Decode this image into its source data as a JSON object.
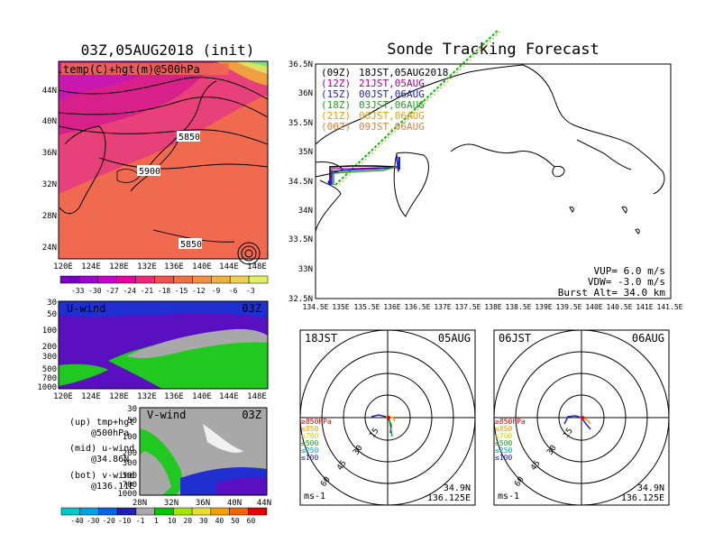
{
  "colors": {
    "temp_scale": [
      "#7a00c8",
      "#a000d0",
      "#c800c8",
      "#e600a0",
      "#f0287a",
      "#f05050",
      "#f07040",
      "#f09040",
      "#f0b040",
      "#f0d050",
      "#e0f060"
    ],
    "u_neg": "#5a10c0",
    "u_neg2": "#2030d0",
    "u_pos": "#20c820",
    "u_gray": "#a8a8a8",
    "v_scale": [
      "#00c8c8",
      "#00a0e6",
      "#0064e6",
      "#2020b4",
      "#a8a8a8",
      "#00c800",
      "#a0e600",
      "#e6dc32",
      "#f0a000",
      "#f06400",
      "#e60000"
    ],
    "track_colors": [
      "#000000",
      "#a000a0",
      "#2020d0",
      "#20a020",
      "#e6a000",
      "#e08040"
    ]
  },
  "left": {
    "top_panel": {
      "title": "03Z,05AUG2018 (init)",
      "label": "temp(C)+hgt(m)@500hPa",
      "contours": [
        "5850",
        "5900",
        "5850"
      ],
      "yticks": [
        "44N",
        "40N",
        "36N",
        "32N",
        "28N",
        "24N"
      ],
      "xticks": [
        "120E",
        "124E",
        "128E",
        "132E",
        "136E",
        "140E",
        "144E",
        "148E"
      ],
      "scale": [
        "-33",
        "-30",
        "-27",
        "-24",
        "-21",
        "-18",
        "-15",
        "-12",
        "-9",
        "-6",
        "-3"
      ]
    },
    "u_panel": {
      "label": "U-wind",
      "time": "03Z",
      "yticks": [
        "30",
        "50",
        "100",
        "200",
        "300",
        "500",
        "700",
        "1000"
      ],
      "xticks": [
        "120E",
        "124E",
        "128E",
        "132E",
        "136E",
        "140E",
        "144E",
        "148E"
      ]
    },
    "v_panel": {
      "label": "V-wind",
      "time": "03Z",
      "yticks": [
        "30",
        "50",
        "100",
        "200",
        "300",
        "500",
        "700",
        "1000"
      ],
      "xticks": [
        "28N",
        "32N",
        "36N",
        "40N",
        "44N"
      ]
    },
    "legend": {
      "l1": "(up) tmp+hgt",
      "l2": "@500hPa",
      "l3": "(mid) u-wind",
      "l4": "@34.86N",
      "l5": "(bot) v-wind",
      "l6": "@136.11E"
    },
    "v_scale": [
      "-40",
      "-30",
      "-20",
      "-10",
      "-1",
      "1",
      "10",
      "20",
      "30",
      "40",
      "50",
      "60"
    ]
  },
  "map": {
    "title": "Sonde Tracking Forecast",
    "legend": [
      {
        "key": "(09Z)",
        "val": "18JST,05AUG2018"
      },
      {
        "key": "(12Z)",
        "val": "21JST,05AUG"
      },
      {
        "key": "(15Z)",
        "val": "00JST,06AUG"
      },
      {
        "key": "(18Z)",
        "val": "03JST,06AUG"
      },
      {
        "key": "(21Z)",
        "val": "06JST,06AUG"
      },
      {
        "key": "(00Z)",
        "val": "09JST,06AUG"
      }
    ],
    "yticks": [
      "36.5N",
      "36N",
      "35.5N",
      "35N",
      "34.5N",
      "34N",
      "33.5N",
      "33N",
      "32.5N"
    ],
    "xticks": [
      "134.5E",
      "135E",
      "135.5E",
      "136E",
      "136.5E",
      "137E",
      "137.5E",
      "138E",
      "138.5E",
      "139E",
      "139.5E",
      "140E",
      "140.5E",
      "141E",
      "141.5E"
    ],
    "vup": "VUP=  6.0 m/s",
    "vdw": "VDW= -3.0 m/s",
    "burst": "Burst Alt= 34.0 km"
  },
  "hodo_left": {
    "time": "18JST",
    "date": "05AUG",
    "rings": [
      "15",
      "30",
      "45",
      "60"
    ],
    "levels": [
      "≥850hPa",
      "≤850",
      "≤700",
      "≤500",
      "≤250",
      "≤100"
    ],
    "lat": "34.9N",
    "lon": "136.125E",
    "unit": "ms-1"
  },
  "hodo_right": {
    "time": "06JST",
    "date": "06AUG",
    "rings": [
      "15",
      "30",
      "45",
      "60"
    ],
    "levels": [
      "≥850hPa",
      "≤850",
      "≤700",
      "≤500",
      "≤250",
      "≤100"
    ],
    "lat": "34.9N",
    "lon": "136.125E",
    "unit": "ms-1"
  }
}
